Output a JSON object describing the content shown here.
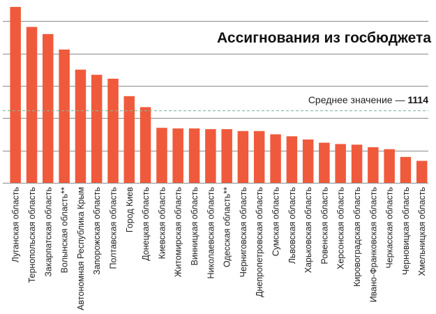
{
  "chart_data": {
    "type": "bar",
    "title": "Ассигнования из госбюджета",
    "average": {
      "label": "Среднее значение — ",
      "value": "1114",
      "y": 1114
    },
    "ylim": [
      0,
      2740
    ],
    "yticks": [
      500,
      1000,
      1500,
      2000,
      2500
    ],
    "grid": true,
    "bar_color": "#f05a3c",
    "avg_line_color": "#7fb89a",
    "categories": [
      "Луганская область",
      "Тернопольская область",
      "Закарпатская область",
      "Волынская область**",
      "Автономная Республика Крым",
      "Запорожская область",
      "Полтавская область",
      "Город Киев",
      "Донецкая область",
      "Киевская область",
      "Житомирская область",
      "Винницкая область",
      "Николаевская область",
      "Одесская область**",
      "Черниговская область",
      "Днепропетровская область",
      "Сумская область",
      "Львовская область",
      "Харьковская область",
      "Ровенская область",
      "Херсонская область",
      "Кировоградская область",
      "Ивано-Франковская область",
      "Черкасская область",
      "Черновицкая область",
      "Хмельницкая область"
    ],
    "values": [
      2720,
      2410,
      2300,
      2060,
      1750,
      1670,
      1610,
      1340,
      1170,
      850,
      840,
      840,
      830,
      830,
      800,
      800,
      750,
      720,
      670,
      620,
      600,
      590,
      550,
      520,
      400,
      340
    ]
  }
}
